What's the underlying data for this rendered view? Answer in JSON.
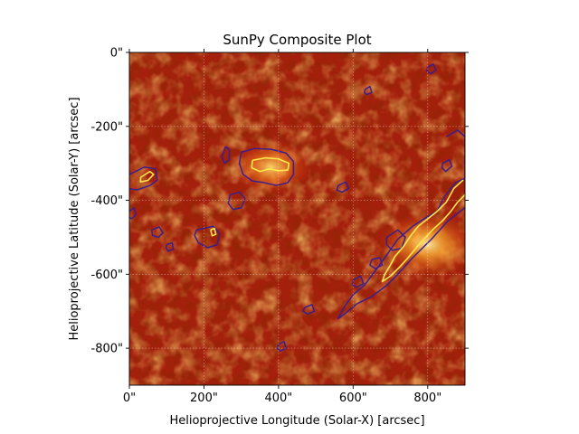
{
  "chart_data": {
    "type": "heatmap",
    "title": "SunPy Composite Plot",
    "xlabel": "Helioprojective Longitude (Solar-X) [arcsec]",
    "ylabel": "Helioprojective Latitude (Solar-Y) [arcsec]",
    "xlim": [
      0,
      900
    ],
    "ylim": [
      -900,
      0
    ],
    "xticks": [
      {
        "value": 0,
        "label": "0\""
      },
      {
        "value": 200,
        "label": "200\""
      },
      {
        "value": 400,
        "label": "400\""
      },
      {
        "value": 600,
        "label": "600\""
      },
      {
        "value": 800,
        "label": "800\""
      }
    ],
    "yticks": [
      {
        "value": 0,
        "label": "0\""
      },
      {
        "value": -200,
        "label": "-200\""
      },
      {
        "value": -400,
        "label": "-400\""
      },
      {
        "value": -600,
        "label": "-600\""
      },
      {
        "value": -800,
        "label": "-800\""
      }
    ],
    "grid": true,
    "colormap": "solar red-orange-yellow",
    "background_colors": {
      "disk_base": "#a5200c",
      "off_limb": "#3a0803",
      "bright": "#ffd04a"
    },
    "contour_colors": {
      "outer": "#3a1f8c",
      "inner": "#ffe84a"
    },
    "limb": {
      "center": [
        0,
        0
      ],
      "radius": 970
    },
    "layers": [
      {
        "kind": "contour",
        "level": "outer",
        "color": "#3a1f8c",
        "paths": [
          [
            [
              300,
              -270
            ],
            [
              335,
              -260
            ],
            [
              380,
              -262
            ],
            [
              420,
              -272
            ],
            [
              440,
              -295
            ],
            [
              440,
              -330
            ],
            [
              425,
              -352
            ],
            [
              395,
              -360
            ],
            [
              360,
              -352
            ],
            [
              330,
              -348
            ],
            [
              305,
              -330
            ],
            [
              295,
              -300
            ],
            [
              300,
              -270
            ]
          ],
          [
            [
              258,
              -255
            ],
            [
              268,
              -262
            ],
            [
              268,
              -290
            ],
            [
              255,
              -300
            ],
            [
              248,
              -282
            ],
            [
              258,
              -255
            ]
          ],
          [
            [
              270,
              -385
            ],
            [
              295,
              -378
            ],
            [
              310,
              -395
            ],
            [
              300,
              -420
            ],
            [
              278,
              -425
            ],
            [
              265,
              -408
            ],
            [
              270,
              -385
            ]
          ],
          [
            [
              0,
              -330
            ],
            [
              40,
              -310
            ],
            [
              70,
              -315
            ],
            [
              75,
              -345
            ],
            [
              55,
              -360
            ],
            [
              20,
              -372
            ],
            [
              0,
              -368
            ]
          ],
          [
            [
              0,
              -430
            ],
            [
              12,
              -420
            ],
            [
              18,
              -438
            ],
            [
              6,
              -450
            ],
            [
              0,
              -446
            ]
          ],
          [
            [
              180,
              -480
            ],
            [
              225,
              -470
            ],
            [
              242,
              -490
            ],
            [
              235,
              -520
            ],
            [
              210,
              -528
            ],
            [
              185,
              -515
            ],
            [
              175,
              -495
            ],
            [
              180,
              -480
            ]
          ],
          [
            [
              60,
              -480
            ],
            [
              80,
              -472
            ],
            [
              90,
              -488
            ],
            [
              78,
              -500
            ],
            [
              62,
              -495
            ],
            [
              60,
              -480
            ]
          ],
          [
            [
              100,
              -520
            ],
            [
              115,
              -515
            ],
            [
              118,
              -532
            ],
            [
              104,
              -538
            ],
            [
              98,
              -528
            ],
            [
              100,
              -520
            ]
          ],
          [
            [
              850,
              -228
            ],
            [
              880,
              -210
            ],
            [
              900,
              -228
            ],
            [
              900,
              -340
            ],
            [
              875,
              -352
            ],
            [
              845,
              -390
            ],
            [
              825,
              -430
            ],
            [
              790,
              -450
            ],
            [
              760,
              -470
            ],
            [
              720,
              -505
            ],
            [
              690,
              -548
            ],
            [
              660,
              -590
            ],
            [
              630,
              -630
            ],
            [
              600,
              -655
            ],
            [
              575,
              -690
            ],
            [
              560,
              -720
            ],
            [
              580,
              -705
            ],
            [
              610,
              -680
            ],
            [
              650,
              -660
            ],
            [
              690,
              -630
            ],
            [
              720,
              -600
            ],
            [
              760,
              -555
            ],
            [
              810,
              -505
            ],
            [
              855,
              -455
            ],
            [
              900,
              -420
            ]
          ],
          [
            [
              840,
              -300
            ],
            [
              858,
              -290
            ],
            [
              865,
              -308
            ],
            [
              848,
              -322
            ],
            [
              838,
              -312
            ],
            [
              840,
              -300
            ]
          ],
          [
            [
              690,
              -500
            ],
            [
              720,
              -480
            ],
            [
              740,
              -500
            ],
            [
              730,
              -530
            ],
            [
              705,
              -535
            ],
            [
              690,
              -520
            ],
            [
              690,
              -500
            ]
          ],
          [
            [
              650,
              -560
            ],
            [
              672,
              -555
            ],
            [
              678,
              -575
            ],
            [
              660,
              -585
            ],
            [
              645,
              -575
            ],
            [
              650,
              -560
            ]
          ],
          [
            [
              600,
              -615
            ],
            [
              620,
              -605
            ],
            [
              628,
              -625
            ],
            [
              610,
              -635
            ],
            [
              598,
              -628
            ],
            [
              600,
              -615
            ]
          ],
          [
            [
              800,
              -40
            ],
            [
              815,
              -32
            ],
            [
              822,
              -48
            ],
            [
              808,
              -58
            ],
            [
              798,
              -50
            ],
            [
              800,
              -40
            ]
          ],
          [
            [
              632,
              -100
            ],
            [
              645,
              -92
            ],
            [
              650,
              -108
            ],
            [
              637,
              -114
            ],
            [
              630,
              -108
            ],
            [
              632,
              -100
            ]
          ],
          [
            [
              560,
              -360
            ],
            [
              580,
              -350
            ],
            [
              588,
              -368
            ],
            [
              570,
              -378
            ],
            [
              556,
              -372
            ],
            [
              560,
              -360
            ]
          ],
          [
            [
              470,
              -690
            ],
            [
              490,
              -682
            ],
            [
              496,
              -700
            ],
            [
              478,
              -708
            ],
            [
              466,
              -700
            ],
            [
              470,
              -690
            ]
          ],
          [
            [
              400,
              -790
            ],
            [
              415,
              -782
            ],
            [
              420,
              -800
            ],
            [
              405,
              -808
            ],
            [
              396,
              -800
            ],
            [
              400,
              -790
            ]
          ]
        ]
      },
      {
        "kind": "contour",
        "level": "inner",
        "color": "#ffe84a",
        "paths": [
          [
            [
              330,
              -292
            ],
            [
              365,
              -285
            ],
            [
              400,
              -288
            ],
            [
              428,
              -300
            ],
            [
              425,
              -318
            ],
            [
              400,
              -320
            ],
            [
              375,
              -315
            ],
            [
              350,
              -322
            ],
            [
              328,
              -312
            ],
            [
              330,
              -292
            ]
          ],
          [
            [
              30,
              -338
            ],
            [
              55,
              -322
            ],
            [
              65,
              -330
            ],
            [
              50,
              -346
            ],
            [
              30,
              -350
            ],
            [
              30,
              -338
            ]
          ],
          [
            [
              218,
              -480
            ],
            [
              228,
              -476
            ],
            [
              232,
              -492
            ],
            [
              222,
              -496
            ],
            [
              218,
              -480
            ]
          ],
          [
            [
              895,
              -345
            ],
            [
              870,
              -368
            ],
            [
              850,
              -405
            ],
            [
              825,
              -430
            ],
            [
              800,
              -450
            ],
            [
              775,
              -470
            ],
            [
              755,
              -495
            ],
            [
              735,
              -525
            ],
            [
              712,
              -552
            ],
            [
              700,
              -575
            ],
            [
              685,
              -600
            ],
            [
              678,
              -620
            ],
            [
              700,
              -605
            ],
            [
              725,
              -580
            ],
            [
              745,
              -558
            ],
            [
              768,
              -530
            ],
            [
              790,
              -505
            ],
            [
              815,
              -478
            ],
            [
              840,
              -455
            ],
            [
              862,
              -430
            ],
            [
              880,
              -405
            ],
            [
              900,
              -385
            ]
          ]
        ]
      },
      {
        "kind": "bright_region",
        "center": [
          800,
          -520
        ],
        "intensity": 0.9
      },
      {
        "kind": "bright_region",
        "center": [
          380,
          -310
        ],
        "intensity": 0.75
      }
    ]
  }
}
